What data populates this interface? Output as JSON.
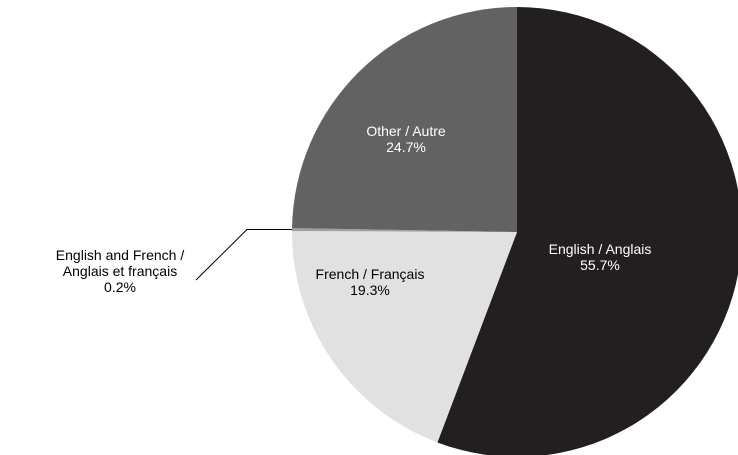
{
  "chart_data": {
    "type": "pie",
    "categories": [
      "English / Anglais",
      "French / Français",
      "English and French / Anglais et français",
      "Other / Autre"
    ],
    "values": [
      55.7,
      19.3,
      0.2,
      24.7
    ],
    "value_labels": [
      "55.7%",
      "19.3%",
      "0.2%",
      "24.7%"
    ],
    "colors": [
      "#231f20",
      "#e1e1e2",
      "#a0a0a0",
      "#626262"
    ]
  }
}
